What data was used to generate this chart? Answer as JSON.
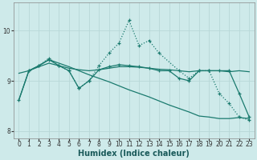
{
  "xlabel": "Humidex (Indice chaleur)",
  "bg_color": "#ceeaea",
  "grid_color": "#b8d8d8",
  "line_color": "#1a7a6e",
  "xlim": [
    -0.5,
    23.5
  ],
  "ylim": [
    7.85,
    10.55
  ],
  "xticks": [
    0,
    1,
    2,
    3,
    4,
    5,
    6,
    7,
    8,
    9,
    10,
    11,
    12,
    13,
    14,
    15,
    16,
    17,
    18,
    19,
    20,
    21,
    22,
    23
  ],
  "yticks": [
    8,
    9,
    10
  ],
  "series": [
    {
      "x": [
        1,
        2,
        3,
        4,
        5,
        6,
        7,
        8,
        9,
        10,
        11,
        12,
        13,
        14,
        16,
        17,
        18,
        19,
        20,
        21,
        22,
        23
      ],
      "y": [
        9.2,
        9.3,
        9.45,
        9.3,
        9.2,
        8.85,
        9.0,
        9.3,
        9.55,
        9.75,
        10.2,
        9.7,
        9.8,
        9.55,
        9.2,
        9.05,
        9.2,
        9.2,
        8.75,
        8.55,
        8.28,
        8.22
      ],
      "marker": "+",
      "linestyle": ":"
    },
    {
      "x": [
        0,
        1,
        2,
        3,
        4,
        5,
        6,
        7,
        8,
        9,
        10,
        11,
        12,
        13,
        14,
        15,
        16,
        17,
        18,
        19,
        20,
        21,
        22,
        23
      ],
      "y": [
        9.15,
        9.2,
        9.28,
        9.35,
        9.3,
        9.25,
        9.22,
        9.2,
        9.22,
        9.25,
        9.28,
        9.28,
        9.27,
        9.25,
        9.23,
        9.22,
        9.2,
        9.18,
        9.2,
        9.2,
        9.2,
        9.18,
        9.2,
        9.18
      ],
      "marker": null,
      "linestyle": "-"
    },
    {
      "x": [
        0,
        1,
        2,
        3,
        4,
        5,
        6,
        7,
        8,
        9,
        10,
        11,
        12,
        13,
        14,
        15,
        16,
        17,
        18,
        19,
        20,
        21,
        22,
        23
      ],
      "y": [
        8.62,
        9.2,
        9.3,
        9.42,
        9.35,
        9.28,
        9.2,
        9.12,
        9.05,
        8.98,
        8.9,
        8.82,
        8.75,
        8.68,
        8.6,
        8.52,
        8.45,
        8.38,
        8.3,
        8.28,
        8.25,
        8.25,
        8.27,
        8.25
      ],
      "marker": null,
      "linestyle": "-"
    },
    {
      "x": [
        0,
        1,
        2,
        3,
        4,
        5,
        6,
        7,
        8,
        9,
        10,
        11,
        12,
        13,
        14,
        15,
        16,
        17,
        18,
        19,
        20,
        21,
        22,
        23
      ],
      "y": [
        8.62,
        9.2,
        9.3,
        9.42,
        9.3,
        9.2,
        8.85,
        9.0,
        9.22,
        9.28,
        9.32,
        9.3,
        9.28,
        9.25,
        9.2,
        9.2,
        9.05,
        9.0,
        9.2,
        9.2,
        9.2,
        9.2,
        8.75,
        8.28
      ],
      "marker": "+",
      "linestyle": "-"
    }
  ]
}
